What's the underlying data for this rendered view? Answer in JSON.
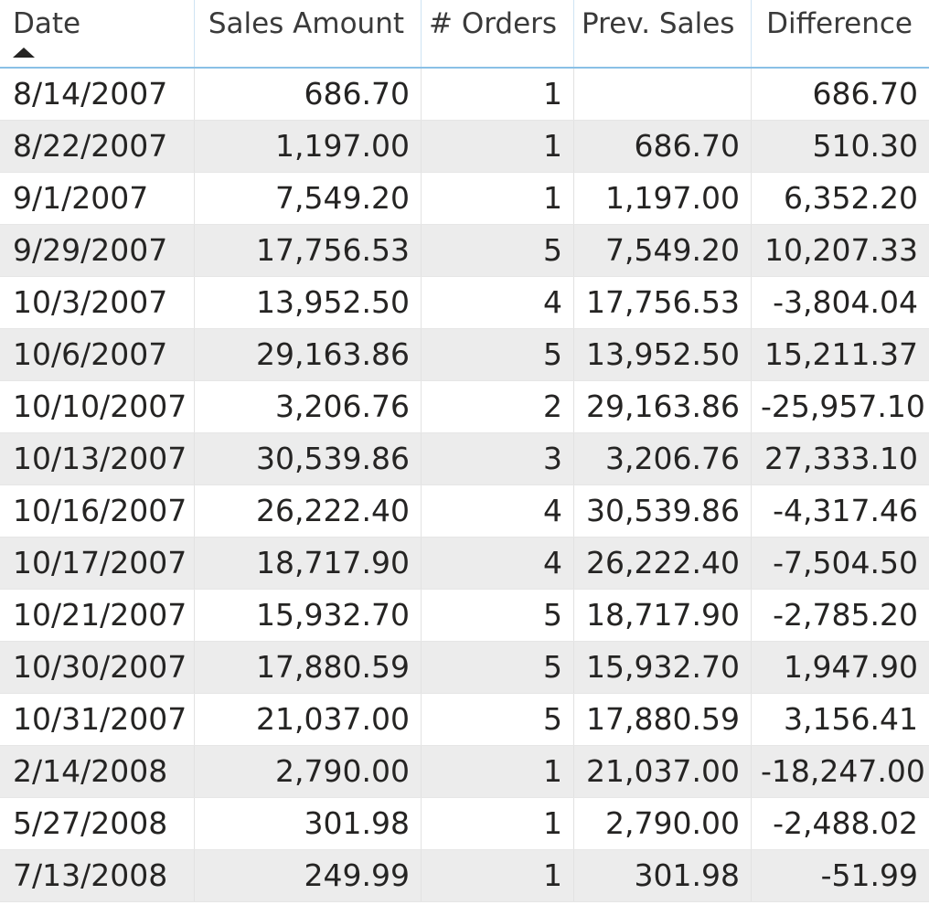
{
  "table": {
    "columns": [
      {
        "label": "Date",
        "align": "left",
        "sorted": "ascending"
      },
      {
        "label": "Sales Amount",
        "align": "right"
      },
      {
        "label": "# Orders",
        "align": "right"
      },
      {
        "label": "Prev. Sales",
        "align": "right"
      },
      {
        "label": "Difference",
        "align": "right"
      }
    ],
    "rows": [
      [
        "8/14/2007",
        "686.70",
        "1",
        "",
        "686.70"
      ],
      [
        "8/22/2007",
        "1,197.00",
        "1",
        "686.70",
        "510.30"
      ],
      [
        "9/1/2007",
        "7,549.20",
        "1",
        "1,197.00",
        "6,352.20"
      ],
      [
        "9/29/2007",
        "17,756.53",
        "5",
        "7,549.20",
        "10,207.33"
      ],
      [
        "10/3/2007",
        "13,952.50",
        "4",
        "17,756.53",
        "-3,804.04"
      ],
      [
        "10/6/2007",
        "29,163.86",
        "5",
        "13,952.50",
        "15,211.37"
      ],
      [
        "10/10/2007",
        "3,206.76",
        "2",
        "29,163.86",
        "-25,957.10"
      ],
      [
        "10/13/2007",
        "30,539.86",
        "3",
        "3,206.76",
        "27,333.10"
      ],
      [
        "10/16/2007",
        "26,222.40",
        "4",
        "30,539.86",
        "-4,317.46"
      ],
      [
        "10/17/2007",
        "18,717.90",
        "4",
        "26,222.40",
        "-7,504.50"
      ],
      [
        "10/21/2007",
        "15,932.70",
        "5",
        "18,717.90",
        "-2,785.20"
      ],
      [
        "10/30/2007",
        "17,880.59",
        "5",
        "15,932.70",
        "1,947.90"
      ],
      [
        "10/31/2007",
        "21,037.00",
        "5",
        "17,880.59",
        "3,156.41"
      ],
      [
        "2/14/2008",
        "2,790.00",
        "1",
        "21,037.00",
        "-18,247.00"
      ],
      [
        "5/27/2008",
        "301.98",
        "1",
        "2,790.00",
        "-2,488.02"
      ],
      [
        "7/13/2008",
        "249.99",
        "1",
        "301.98",
        "-51.99"
      ]
    ]
  },
  "colors": {
    "header_border": "#8ac0e6",
    "alt_row_bg": "#ececec",
    "text": "#252423"
  }
}
